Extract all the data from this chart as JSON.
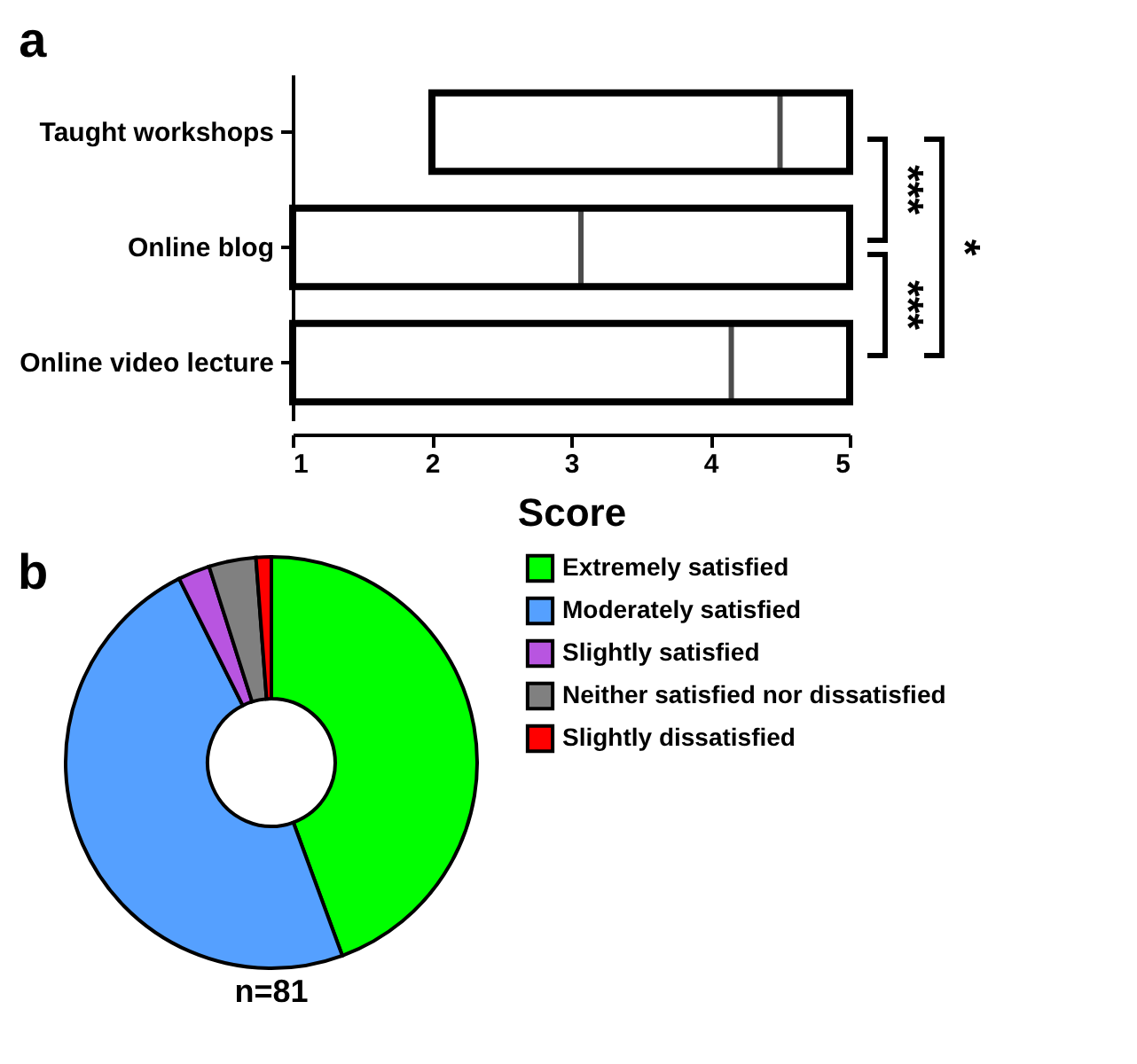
{
  "chart_data": [
    {
      "type": "box",
      "orientation": "horizontal",
      "title": "a",
      "xlabel": "Score",
      "categories": [
        "Taught workshops",
        "Online blog",
        "Online video lecture"
      ],
      "boxes": [
        {
          "low": 2,
          "q1": 2,
          "median": 4.5,
          "q3": 5,
          "high": 5
        },
        {
          "low": 1,
          "q1": 1,
          "median": 3.07,
          "q3": 5,
          "high": 5
        },
        {
          "low": 1,
          "q1": 1,
          "median": 4.15,
          "q3": 5,
          "high": 5
        }
      ],
      "xlim": [
        1,
        5
      ],
      "xticks": [
        1,
        2,
        3,
        4,
        5
      ],
      "annotations": [
        "***",
        "***",
        "*"
      ]
    },
    {
      "type": "donut",
      "title": "b",
      "categories": [
        "Extremely satisfied",
        "Moderately satisfied",
        "Slightly satisfied",
        "Neither satisfied nor dissatisfied",
        "Slightly dissatisfied"
      ],
      "values": [
        44.4,
        48.2,
        2.5,
        3.7,
        1.2
      ],
      "colors": [
        "#00ff00",
        "#55a0ff",
        "#b855e0",
        "#808080",
        "#ff0000"
      ],
      "legend": "right",
      "annotations": [
        "n=81"
      ]
    }
  ]
}
